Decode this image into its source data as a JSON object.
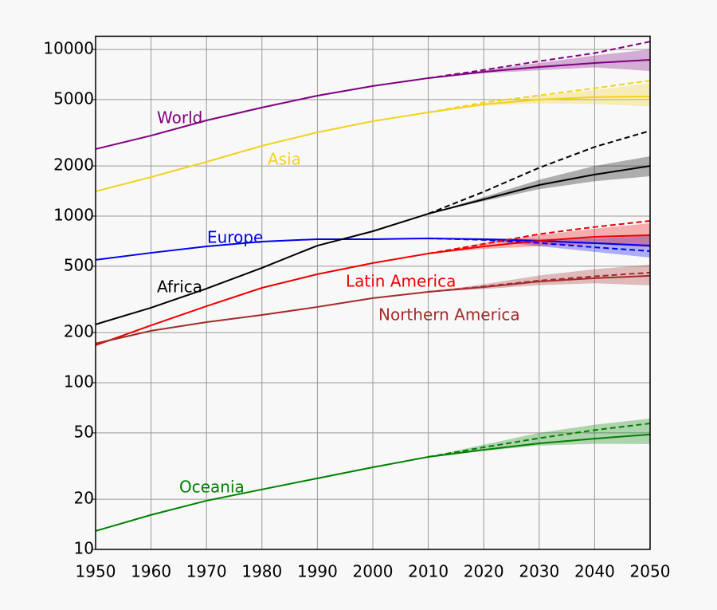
{
  "chart_data": {
    "type": "line",
    "log_scale": true,
    "grid": true,
    "x": [
      1950,
      1960,
      1970,
      1980,
      1990,
      2000,
      2010,
      2020,
      2030,
      2040,
      2050
    ],
    "xlim": [
      1950,
      2050
    ],
    "xticks": [
      1950,
      1960,
      1970,
      1980,
      1990,
      2000,
      2010,
      2020,
      2030,
      2040,
      2050
    ],
    "ylim": [
      10,
      12000
    ],
    "yticks": [
      10,
      20,
      50,
      100,
      200,
      500,
      1000,
      2000,
      5000,
      10000
    ],
    "series": [
      {
        "name": "World",
        "color": "#800080",
        "values": [
          2525,
          3040,
          3750,
          4480,
          5280,
          6030,
          6730,
          7340,
          7850,
          8290,
          8670
        ],
        "high": [
          null,
          null,
          null,
          null,
          null,
          null,
          6730,
          7530,
          8500,
          9500,
          11150
        ],
        "band_low": [
          null,
          null,
          null,
          null,
          null,
          null,
          6730,
          7200,
          7500,
          7800,
          7430
        ],
        "band_high": [
          null,
          null,
          null,
          null,
          null,
          null,
          6730,
          7500,
          8300,
          9200,
          10000
        ]
      },
      {
        "name": "Asia",
        "color": "#f2d21a",
        "values": [
          1406,
          1715,
          2115,
          2640,
          3180,
          3710,
          4190,
          4680,
          5000,
          5170,
          5220
        ],
        "high": [
          null,
          null,
          null,
          null,
          null,
          null,
          4190,
          4800,
          5300,
          5850,
          6500
        ],
        "band_low": [
          null,
          null,
          null,
          null,
          null,
          null,
          4190,
          4600,
          4750,
          4700,
          4550
        ],
        "band_high": [
          null,
          null,
          null,
          null,
          null,
          null,
          4190,
          4750,
          5250,
          5700,
          6300
        ]
      },
      {
        "name": "Europe",
        "color": "#0000ee",
        "values": [
          546,
          602,
          658,
          703,
          727,
          727,
          735,
          727,
          711,
          688,
          665
        ],
        "high": [
          null,
          null,
          null,
          null,
          null,
          null,
          735,
          720,
          690,
          650,
          616
        ],
        "band_low": [
          null,
          null,
          null,
          null,
          null,
          null,
          735,
          715,
          660,
          610,
          564
        ],
        "band_high": [
          null,
          null,
          null,
          null,
          null,
          null,
          735,
          735,
          730,
          735,
          759
        ]
      },
      {
        "name": "Africa",
        "color": "#000000",
        "values": [
          224,
          282,
          367,
          489,
          665,
          811,
          1033,
          1260,
          1537,
          1775,
          2000
        ],
        "high": [
          null,
          null,
          null,
          null,
          null,
          null,
          1033,
          1400,
          1950,
          2600,
          3250
        ],
        "band_low": [
          null,
          null,
          null,
          null,
          null,
          null,
          1033,
          1230,
          1450,
          1620,
          1735
        ],
        "band_high": [
          null,
          null,
          null,
          null,
          null,
          null,
          1033,
          1300,
          1650,
          2000,
          2285
        ]
      },
      {
        "name": "Latin America",
        "color": "#ee0000",
        "values": [
          168,
          221,
          288,
          371,
          448,
          523,
          596,
          658,
          711,
          751,
          768
        ],
        "high": [
          null,
          null,
          null,
          null,
          null,
          null,
          596,
          680,
          780,
          860,
          936
        ],
        "band_low": [
          null,
          null,
          null,
          null,
          null,
          null,
          596,
          635,
          660,
          680,
          650
        ],
        "band_high": [
          null,
          null,
          null,
          null,
          null,
          null,
          596,
          690,
          770,
          840,
          905
        ]
      },
      {
        "name": "Northern America",
        "color": "#a52a2a",
        "values": [
          172,
          205,
          231,
          255,
          285,
          322,
          351,
          375,
          405,
          424,
          438
        ],
        "high": [
          null,
          null,
          null,
          null,
          null,
          null,
          351,
          378,
          410,
          435,
          458
        ],
        "band_low": [
          null,
          null,
          null,
          null,
          null,
          null,
          351,
          365,
          385,
          395,
          384
        ],
        "band_high": [
          null,
          null,
          null,
          null,
          null,
          null,
          351,
          390,
          440,
          480,
          511
        ]
      },
      {
        "name": "Oceania",
        "color": "#008000",
        "values": [
          12.9,
          16.1,
          19.6,
          22.9,
          26.7,
          31.1,
          35.9,
          39.6,
          43.3,
          46.2,
          48.9
        ],
        "high": [
          null,
          null,
          null,
          null,
          null,
          null,
          35.9,
          41,
          46.5,
          52,
          57
        ],
        "band_low": [
          null,
          null,
          null,
          null,
          null,
          null,
          35.9,
          39,
          42,
          43,
          42.9
        ],
        "band_high": [
          null,
          null,
          null,
          null,
          null,
          null,
          35.9,
          42.5,
          50,
          56,
          61
        ]
      }
    ]
  }
}
